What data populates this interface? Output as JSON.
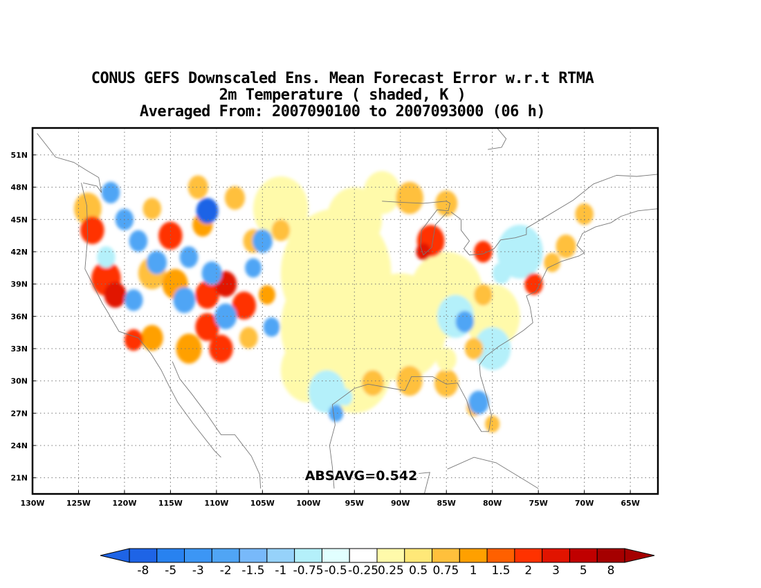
{
  "title": {
    "line1": "CONUS GEFS Downscaled Ens. Mean Forecast Error w.r.t RTMA",
    "line2": "2m Temperature ( shaded, K )",
    "line3": "Averaged From: 2007090100 to 2007093000 (06 h)"
  },
  "statistic": "ABSAVG=0.542",
  "map": {
    "lon_range": [
      -130,
      -62
    ],
    "lat_range": [
      19.5,
      53.5
    ],
    "lon_ticks": [
      {
        "value": -130,
        "label": "130W"
      },
      {
        "value": -125,
        "label": "125W"
      },
      {
        "value": -120,
        "label": "120W"
      },
      {
        "value": -115,
        "label": "115W"
      },
      {
        "value": -110,
        "label": "110W"
      },
      {
        "value": -105,
        "label": "105W"
      },
      {
        "value": -100,
        "label": "100W"
      },
      {
        "value": -95,
        "label": "95W"
      },
      {
        "value": -90,
        "label": "90W"
      },
      {
        "value": -85,
        "label": "85W"
      },
      {
        "value": -80,
        "label": "80W"
      },
      {
        "value": -75,
        "label": "75W"
      },
      {
        "value": -70,
        "label": "70W"
      },
      {
        "value": -65,
        "label": "65W"
      }
    ],
    "lat_ticks": [
      {
        "value": 21,
        "label": "21N"
      },
      {
        "value": 24,
        "label": "24N"
      },
      {
        "value": 27,
        "label": "27N"
      },
      {
        "value": 30,
        "label": "30N"
      },
      {
        "value": 33,
        "label": "33N"
      },
      {
        "value": 36,
        "label": "36N"
      },
      {
        "value": 39,
        "label": "39N"
      },
      {
        "value": 42,
        "label": "42N"
      },
      {
        "value": 45,
        "label": "45N"
      },
      {
        "value": 48,
        "label": "48N"
      },
      {
        "value": 51,
        "label": "51N"
      }
    ],
    "grid": true
  },
  "colorbar": {
    "labels": [
      "-8",
      "-5",
      "-3",
      "-2",
      "-1.5",
      "-1",
      "-0.75",
      "-0.5",
      "-0.25",
      "0.25",
      "0.5",
      "0.75",
      "1",
      "1.5",
      "2",
      "3",
      "5",
      "8"
    ],
    "colors": [
      "#1e64e6",
      "#2882f0",
      "#3c96f5",
      "#50a5f5",
      "#78b9fa",
      "#96d2fa",
      "#b4f0fa",
      "#e1ffff",
      "#ffffff",
      "#fffaaa",
      "#ffe878",
      "#ffc03c",
      "#ffa000",
      "#ff6000",
      "#ff3200",
      "#e11400",
      "#c00000",
      "#a50000"
    ]
  },
  "legend_colors": {
    "neg_strong": "#1e64e6",
    "neg": "#50a5f5",
    "neg_light": "#b4f0fa",
    "pos_light": "#fffaaa",
    "pos": "#ffc03c",
    "pos_mid": "#ffa000",
    "pos_strong": "#ff3200",
    "pos_max": "#e11400"
  }
}
